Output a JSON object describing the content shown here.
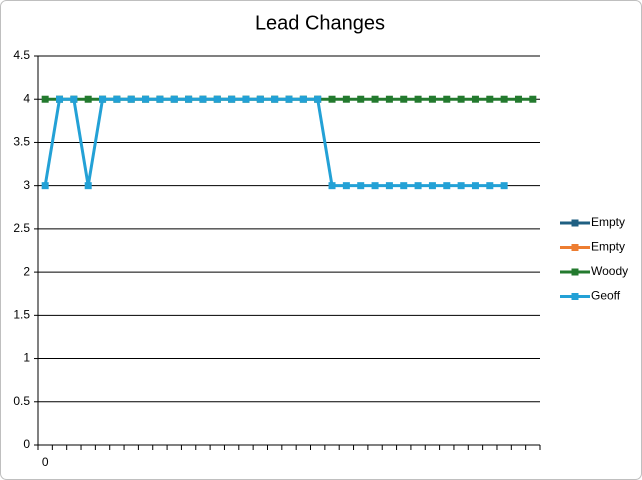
{
  "chart_data": {
    "type": "line",
    "title": "Lead Changes",
    "categories": [
      "0",
      null,
      null,
      null,
      null,
      null,
      null,
      null,
      null,
      null,
      null,
      null,
      null,
      null,
      null,
      null,
      null,
      null,
      null,
      null,
      null,
      null,
      null,
      null,
      null,
      null,
      null,
      null,
      null,
      null,
      null,
      null,
      null,
      null,
      null
    ],
    "series": [
      {
        "name": "Empty",
        "color": "#1f5f82",
        "values": [
          null,
          null,
          null,
          null,
          null,
          null,
          null,
          null,
          null,
          null,
          null,
          null,
          null,
          null,
          null,
          null,
          null,
          null,
          null,
          null,
          null,
          null,
          null,
          null,
          null,
          null,
          null,
          null,
          null,
          null,
          null,
          null,
          null,
          null,
          null
        ]
      },
      {
        "name": "Empty",
        "color": "#ed7d31",
        "values": [
          null,
          null,
          null,
          null,
          null,
          null,
          null,
          null,
          null,
          null,
          null,
          null,
          null,
          null,
          null,
          null,
          null,
          null,
          null,
          null,
          null,
          null,
          null,
          null,
          null,
          null,
          null,
          null,
          null,
          null,
          null,
          null,
          null,
          null,
          null
        ]
      },
      {
        "name": "Woody",
        "color": "#237a2e",
        "values": [
          4,
          4,
          4,
          4,
          4,
          4,
          4,
          4,
          4,
          4,
          4,
          4,
          4,
          4,
          4,
          4,
          4,
          4,
          4,
          4,
          4,
          4,
          4,
          4,
          4,
          4,
          4,
          4,
          4,
          4,
          4,
          4,
          4,
          4,
          4
        ]
      },
      {
        "name": "Geoff",
        "color": "#23a1d6",
        "values": [
          3,
          4,
          4,
          3,
          4,
          4,
          4,
          4,
          4,
          4,
          4,
          4,
          4,
          4,
          4,
          4,
          4,
          4,
          4,
          4,
          3,
          3,
          3,
          3,
          3,
          3,
          3,
          3,
          3,
          3,
          3,
          3,
          3,
          null,
          null
        ]
      }
    ],
    "ylim": [
      0,
      4.5
    ],
    "yticks": [
      0,
      0.5,
      1,
      1.5,
      2,
      2.5,
      3,
      3.5,
      4,
      4.5
    ],
    "grid": true,
    "legend": "right"
  }
}
